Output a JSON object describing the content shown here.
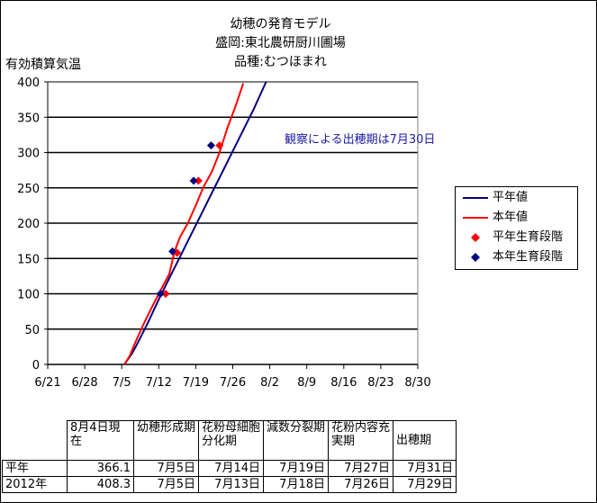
{
  "title_lines": [
    "幼穂の発育モデル",
    "盛岡:東北農研厨川圃場",
    "品種:むつほまれ"
  ],
  "chart_data": {
    "type": "line",
    "ylabel": "有効積算気温",
    "ylim": [
      0,
      400
    ],
    "yticks": [
      0,
      50,
      100,
      150,
      200,
      250,
      300,
      350,
      400
    ],
    "x_tick_labels": [
      "6/21",
      "6/28",
      "7/5",
      "7/12",
      "7/19",
      "7/26",
      "8/2",
      "8/9",
      "8/16",
      "8/23",
      "8/30"
    ],
    "xlim_days": [
      0,
      70
    ],
    "grid": "horizontal",
    "legend_position": "right",
    "series": [
      {
        "name": "平年値",
        "type": "line",
        "color": "#000080",
        "points": [
          [
            14.5,
            0
          ],
          [
            16,
            16
          ],
          [
            17,
            30
          ],
          [
            19,
            60
          ],
          [
            21,
            92
          ],
          [
            23,
            122
          ],
          [
            25,
            152
          ],
          [
            27,
            182
          ],
          [
            29,
            212
          ],
          [
            31,
            242
          ],
          [
            33,
            272
          ],
          [
            35,
            302
          ],
          [
            37,
            332
          ],
          [
            39,
            362
          ],
          [
            41.3,
            400
          ]
        ]
      },
      {
        "name": "本年値",
        "type": "line",
        "color": "#ff0000",
        "points": [
          [
            14.5,
            0
          ],
          [
            15.5,
            12
          ],
          [
            16.5,
            30
          ],
          [
            18,
            55
          ],
          [
            19.5,
            78
          ],
          [
            21,
            100
          ],
          [
            23,
            128
          ],
          [
            24,
            160
          ],
          [
            25,
            180
          ],
          [
            26.5,
            200
          ],
          [
            28,
            225
          ],
          [
            29.5,
            252
          ],
          [
            31,
            272
          ],
          [
            32.5,
            300
          ],
          [
            34,
            335
          ],
          [
            35.5,
            365
          ],
          [
            37,
            398
          ]
        ]
      },
      {
        "name": "平年生育段階",
        "type": "scatter",
        "color": "#ff0000",
        "points": [
          [
            22.3,
            100
          ],
          [
            24.5,
            158
          ],
          [
            28.5,
            260
          ],
          [
            32.5,
            310
          ]
        ]
      },
      {
        "name": "本年生育段階",
        "type": "scatter",
        "color": "#000080",
        "points": [
          [
            21.3,
            100
          ],
          [
            23.6,
            160
          ],
          [
            27.6,
            260
          ],
          [
            30.9,
            310
          ]
        ]
      }
    ],
    "annotation": "観察による出穂期は7月30日"
  },
  "table": {
    "header": [
      "",
      "8月4日現在",
      "幼穂形成期",
      "花粉母細胞分化期",
      "減数分裂期",
      "花粉内容充実期",
      "出穂期"
    ],
    "rows": [
      [
        "平年",
        "366.1",
        "7月5日",
        "7月14日",
        "7月19日",
        "7月27日",
        "7月31日"
      ],
      [
        "2012年",
        "408.3",
        "7月5日",
        "7月13日",
        "7月18日",
        "7月26日",
        "7月29日"
      ]
    ]
  }
}
